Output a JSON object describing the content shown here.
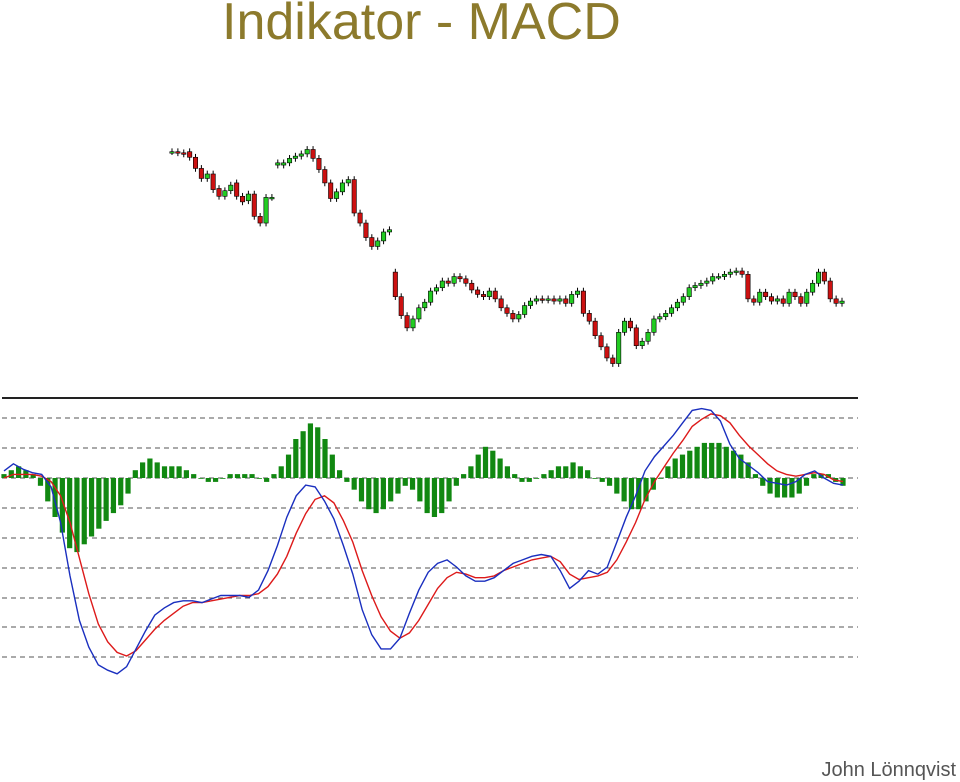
{
  "slide": {
    "title": "Indikator - MACD",
    "author": "John Lönnqvist"
  },
  "colors": {
    "title": "#8c7a2c",
    "up_candle": "#22cc22",
    "down_candle": "#cc1111",
    "wick": "#000000",
    "histogram": "#118811",
    "macd_line": "#1a2fbf",
    "signal_line": "#dd1a1a",
    "grid": "#555555"
  },
  "chart_data": [
    {
      "type": "candlestick",
      "title": "",
      "candles": [
        {
          "o": 140,
          "c": 140
        },
        {
          "o": 140,
          "c": 139
        },
        {
          "o": 139,
          "c": 138
        },
        {
          "o": 140,
          "c": 135
        },
        {
          "o": 135,
          "c": 125
        },
        {
          "o": 125,
          "c": 116
        },
        {
          "o": 116,
          "c": 120
        },
        {
          "o": 120,
          "c": 106
        },
        {
          "o": 107,
          "c": 100
        },
        {
          "o": 100,
          "c": 105
        },
        {
          "o": 105,
          "c": 110
        },
        {
          "o": 112,
          "c": 100
        },
        {
          "o": 100,
          "c": 95
        },
        {
          "o": 96,
          "c": 102
        },
        {
          "o": 102,
          "c": 82
        },
        {
          "o": 82,
          "c": 76
        },
        {
          "o": 76,
          "c": 99
        },
        {
          "o": 99,
          "c": 99
        },
        {
          "o": 128,
          "c": 130
        },
        {
          "o": 128,
          "c": 130
        },
        {
          "o": 130,
          "c": 134
        },
        {
          "o": 134,
          "c": 136
        },
        {
          "o": 136,
          "c": 138
        },
        {
          "o": 138,
          "c": 142
        },
        {
          "o": 142,
          "c": 134
        },
        {
          "o": 134,
          "c": 124
        },
        {
          "o": 124,
          "c": 112
        },
        {
          "o": 112,
          "c": 98
        },
        {
          "o": 98,
          "c": 104
        },
        {
          "o": 104,
          "c": 112
        },
        {
          "o": 112,
          "c": 115
        },
        {
          "o": 115,
          "c": 85
        },
        {
          "o": 85,
          "c": 76
        },
        {
          "o": 76,
          "c": 63
        },
        {
          "o": 63,
          "c": 55
        },
        {
          "o": 55,
          "c": 60
        },
        {
          "o": 60,
          "c": 68
        },
        {
          "o": 68,
          "c": 70
        },
        {
          "o": 32,
          "c": 10
        },
        {
          "o": 10,
          "c": -7
        },
        {
          "o": -7,
          "c": -18
        },
        {
          "o": -18,
          "c": -10
        },
        {
          "o": -10,
          "c": 0
        },
        {
          "o": 0,
          "c": 5
        },
        {
          "o": 5,
          "c": 15
        },
        {
          "o": 15,
          "c": 18
        },
        {
          "o": 18,
          "c": 24
        },
        {
          "o": 24,
          "c": 22
        },
        {
          "o": 22,
          "c": 28
        },
        {
          "o": 28,
          "c": 26
        },
        {
          "o": 26,
          "c": 22
        },
        {
          "o": 22,
          "c": 16
        },
        {
          "o": 16,
          "c": 12
        },
        {
          "o": 12,
          "c": 10
        },
        {
          "o": 10,
          "c": 15
        },
        {
          "o": 15,
          "c": 8
        },
        {
          "o": 8,
          "c": 0
        },
        {
          "o": 0,
          "c": -5
        },
        {
          "o": -5,
          "c": -10
        },
        {
          "o": -10,
          "c": -6
        },
        {
          "o": -6,
          "c": 2
        },
        {
          "o": 2,
          "c": 6
        },
        {
          "o": 6,
          "c": 8
        },
        {
          "o": 8,
          "c": 7
        },
        {
          "o": 7,
          "c": 8
        },
        {
          "o": 8,
          "c": 6
        },
        {
          "o": 6,
          "c": 8
        },
        {
          "o": 8,
          "c": 4
        },
        {
          "o": 4,
          "c": 12
        },
        {
          "o": 12,
          "c": 15
        },
        {
          "o": 15,
          "c": -5
        },
        {
          "o": -5,
          "c": -12
        },
        {
          "o": -12,
          "c": -25
        },
        {
          "o": -25,
          "c": -35
        },
        {
          "o": -35,
          "c": -45
        },
        {
          "o": -45,
          "c": -50
        },
        {
          "o": -50,
          "c": -22
        },
        {
          "o": -22,
          "c": -12
        },
        {
          "o": -12,
          "c": -18
        },
        {
          "o": -18,
          "c": -34
        },
        {
          "o": -34,
          "c": -30
        },
        {
          "o": -30,
          "c": -22
        },
        {
          "o": -22,
          "c": -10
        },
        {
          "o": -10,
          "c": -8
        },
        {
          "o": -8,
          "c": -5
        },
        {
          "o": -5,
          "c": 0
        },
        {
          "o": 0,
          "c": 5
        },
        {
          "o": 5,
          "c": 10
        },
        {
          "o": 10,
          "c": 18
        },
        {
          "o": 18,
          "c": 20
        },
        {
          "o": 20,
          "c": 22
        },
        {
          "o": 22,
          "c": 24
        },
        {
          "o": 24,
          "c": 28
        },
        {
          "o": 28,
          "c": 28
        },
        {
          "o": 28,
          "c": 30
        },
        {
          "o": 30,
          "c": 32
        },
        {
          "o": 32,
          "c": 33
        },
        {
          "o": 33,
          "c": 30
        },
        {
          "o": 30,
          "c": 8
        },
        {
          "o": 8,
          "c": 5
        },
        {
          "o": 5,
          "c": 14
        },
        {
          "o": 14,
          "c": 10
        },
        {
          "o": 10,
          "c": 6
        },
        {
          "o": 6,
          "c": 8
        },
        {
          "o": 8,
          "c": 4
        },
        {
          "o": 4,
          "c": 14
        },
        {
          "o": 14,
          "c": 10
        },
        {
          "o": 10,
          "c": 4
        },
        {
          "o": 4,
          "c": 14
        },
        {
          "o": 14,
          "c": 22
        },
        {
          "o": 22,
          "c": 32
        },
        {
          "o": 32,
          "c": 24
        },
        {
          "o": 24,
          "c": 8
        },
        {
          "o": 8,
          "c": 4
        },
        {
          "o": 4,
          "c": 6
        }
      ]
    },
    {
      "type": "histogram+line",
      "title": "",
      "series": [
        {
          "kind": "histogram",
          "values": [
            1,
            2,
            3,
            2,
            1,
            -2,
            -6,
            -10,
            -14,
            -18,
            -19,
            -17,
            -15,
            -13,
            -11,
            -9,
            -7,
            -4,
            2,
            4,
            5,
            4,
            3,
            3,
            3,
            2,
            1,
            0,
            -1,
            -1,
            0,
            1,
            1,
            1,
            1,
            0,
            -1,
            1,
            3,
            6,
            10,
            12,
            14,
            13,
            10,
            6,
            2,
            -1,
            -3,
            -6,
            -8,
            -9,
            -8,
            -6,
            -4,
            -2,
            -3,
            -6,
            -9,
            -10,
            -9,
            -6,
            -2,
            1,
            3,
            6,
            8,
            7,
            5,
            3,
            1,
            -1,
            -1,
            0,
            1,
            2,
            3,
            3,
            4,
            3,
            2,
            0,
            -1,
            -2,
            -4,
            -6,
            -8,
            -8,
            -6,
            -3,
            0,
            3,
            5,
            6,
            7,
            8,
            9,
            9,
            9,
            8,
            7,
            6,
            4,
            1,
            -2,
            -4,
            -5,
            -5,
            -5,
            -4,
            -2,
            1,
            1,
            1,
            -1,
            -2
          ]
        },
        {
          "kind": "line",
          "values": [
            4,
            8,
            5,
            3,
            2,
            -5,
            -25,
            -55,
            -80,
            -95,
            -105,
            -108,
            -110,
            -106,
            -96,
            -86,
            -77,
            -73,
            -70,
            -69,
            -69,
            -70,
            -68,
            -66,
            -66,
            -66,
            -67,
            -63,
            -52,
            -38,
            -22,
            -10,
            -4,
            -5,
            -13,
            -23,
            -38,
            -54,
            -74,
            -88,
            -96,
            -96,
            -90,
            -76,
            -63,
            -53,
            -48,
            -46,
            -50,
            -55,
            -58,
            -58,
            -56,
            -52,
            -48,
            -46,
            -44,
            -43,
            -44,
            -52,
            -62,
            -58,
            -52,
            -54,
            -50,
            -36,
            -22,
            -10,
            4,
            12,
            18,
            24,
            31,
            38,
            39,
            38,
            32,
            19,
            11,
            7,
            3,
            -2,
            -3,
            -4,
            -2,
            2,
            4,
            0,
            -3,
            -4
          ]
        },
        {
          "kind": "line",
          "values": [
            0,
            2,
            2,
            2,
            1,
            -2,
            -10,
            -25,
            -45,
            -65,
            -82,
            -92,
            -98,
            -100,
            -97,
            -91,
            -85,
            -80,
            -76,
            -72,
            -70,
            -70,
            -69,
            -68,
            -67,
            -66,
            -66,
            -65,
            -61,
            -54,
            -44,
            -31,
            -20,
            -12,
            -10,
            -14,
            -24,
            -36,
            -52,
            -66,
            -78,
            -86,
            -90,
            -87,
            -80,
            -71,
            -62,
            -56,
            -53,
            -54,
            -56,
            -56,
            -55,
            -52,
            -50,
            -48,
            -46,
            -45,
            -44,
            -47,
            -54,
            -57,
            -56,
            -55,
            -53,
            -46,
            -36,
            -25,
            -12,
            -2,
            6,
            14,
            21,
            29,
            33,
            36,
            35,
            31,
            24,
            18,
            13,
            8,
            4,
            2,
            1,
            2,
            3,
            2,
            -1,
            -2
          ]
        }
      ]
    }
  ]
}
